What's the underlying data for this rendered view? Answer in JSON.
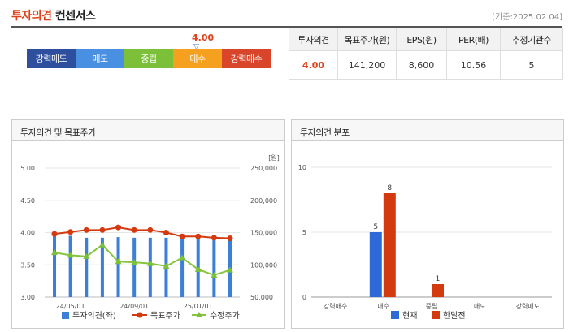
{
  "header": {
    "title_accent": "투자의견",
    "title_rest": "컨센서스",
    "date": "[기준:2025.02.04]"
  },
  "scale": {
    "items": [
      {
        "label": "강력매도",
        "color": "#2d4f9e"
      },
      {
        "label": "매도",
        "color": "#4a90e2"
      },
      {
        "label": "중립",
        "color": "#7cc03a"
      },
      {
        "label": "매수",
        "color": "#f5a01f"
      },
      {
        "label": "강력매수",
        "color": "#d9452b"
      }
    ],
    "marker_value": "4.00",
    "marker_symbol": "▽"
  },
  "consensus": {
    "headers": [
      "투자의견",
      "목표주가(원)",
      "EPS(원)",
      "PER(배)",
      "추정기관수"
    ],
    "values": [
      "4.00",
      "141,200",
      "8,600",
      "10.56",
      "5"
    ]
  },
  "left_panel": {
    "title": "투자의견 및 목표주가",
    "unit": "[원]"
  },
  "right_panel": {
    "title": "투자의견 분포"
  },
  "chart_data": [
    {
      "type": "bar+line",
      "title": "투자의견 및 목표주가",
      "x_ticks": [
        "24/05/01",
        "24/09/01",
        "25/01/01"
      ],
      "y_left": {
        "ticks": [
          "5.00",
          "4.50",
          "4.00",
          "3.50",
          "3.00"
        ],
        "range": [
          3.0,
          5.0
        ]
      },
      "y_right": {
        "ticks": [
          "250,000",
          "200,000",
          "150,000",
          "100,000",
          "50,000"
        ],
        "range": [
          50000,
          250000
        ]
      },
      "bars_opinion": [
        3.95,
        3.95,
        3.92,
        3.92,
        3.93,
        3.92,
        3.92,
        3.92,
        3.92,
        3.92,
        3.92,
        3.92
      ],
      "target_price": [
        148000,
        151000,
        154000,
        154000,
        158000,
        154000,
        154000,
        150000,
        144000,
        144000,
        142000,
        141200
      ],
      "adjusted_price": [
        119000,
        115000,
        113000,
        131000,
        105000,
        104000,
        102000,
        98000,
        111000,
        93000,
        84000,
        92000
      ],
      "legend": [
        "투자의견(좌)",
        "목표주가",
        "수정주가"
      ]
    },
    {
      "type": "bar",
      "title": "투자의견 분포",
      "categories": [
        "강력매수",
        "매수",
        "중립",
        "매도",
        "강력매도"
      ],
      "series": [
        {
          "name": "현재",
          "values": [
            0,
            5,
            0,
            0,
            0
          ],
          "color": "#2d6ad8"
        },
        {
          "name": "한달전",
          "values": [
            0,
            8,
            1,
            0,
            0
          ],
          "color": "#d43a10"
        }
      ],
      "y_ticks": [
        "10",
        "5",
        "0"
      ],
      "ylim": [
        0,
        10
      ]
    }
  ]
}
